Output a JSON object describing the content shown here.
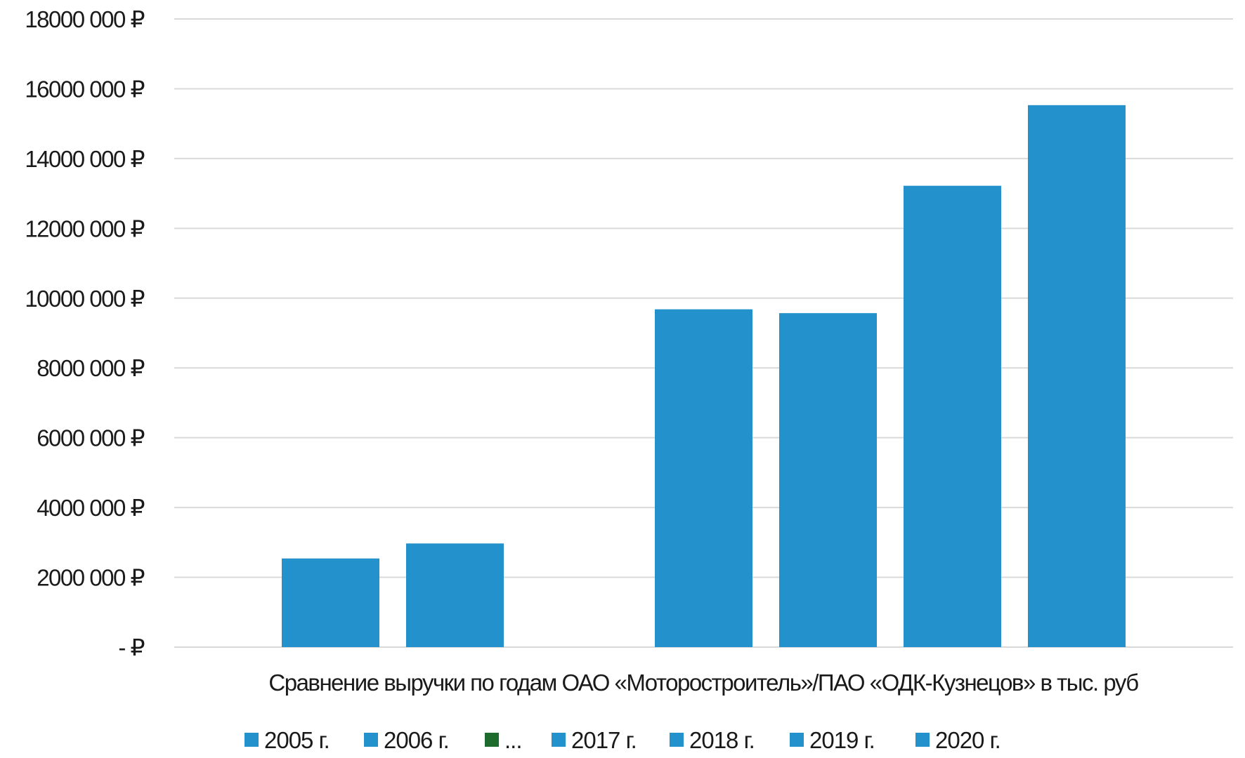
{
  "chart_data": {
    "type": "bar",
    "categories": [
      "Сравнение выручки по годам ОАО «Моторостроитель»/ПАО «ОДК-Кузнецов» в тыс. руб"
    ],
    "series": [
      {
        "name": "2005 г.",
        "values": [
          2540000
        ],
        "color": "#2391cc"
      },
      {
        "name": "2006 г.",
        "values": [
          2970000
        ],
        "color": "#2391cc"
      },
      {
        "name": "...",
        "values": [
          0
        ],
        "color": "#1e6b2e"
      },
      {
        "name": "2017 г.",
        "values": [
          9680000
        ],
        "color": "#2391cc"
      },
      {
        "name": "2018 г.",
        "values": [
          9570000
        ],
        "color": "#2391cc"
      },
      {
        "name": "2019 г.",
        "values": [
          13220000
        ],
        "color": "#2391cc"
      },
      {
        "name": "2020 г.",
        "values": [
          15530000
        ],
        "color": "#2391cc"
      }
    ],
    "yticks": [
      "- ₽",
      "2000 000 ₽",
      "4000 000 ₽",
      "6000 000 ₽",
      "8000 000 ₽",
      "10000 000 ₽",
      "12000 000 ₽",
      "14000 000 ₽",
      "16000 000 ₽",
      "18000 000 ₽"
    ],
    "ylim": [
      0,
      18000000
    ],
    "title": "",
    "xlabel": "",
    "ylabel": "",
    "grid": true,
    "legend": "bottom",
    "gridColor": "#d9d9d9"
  }
}
